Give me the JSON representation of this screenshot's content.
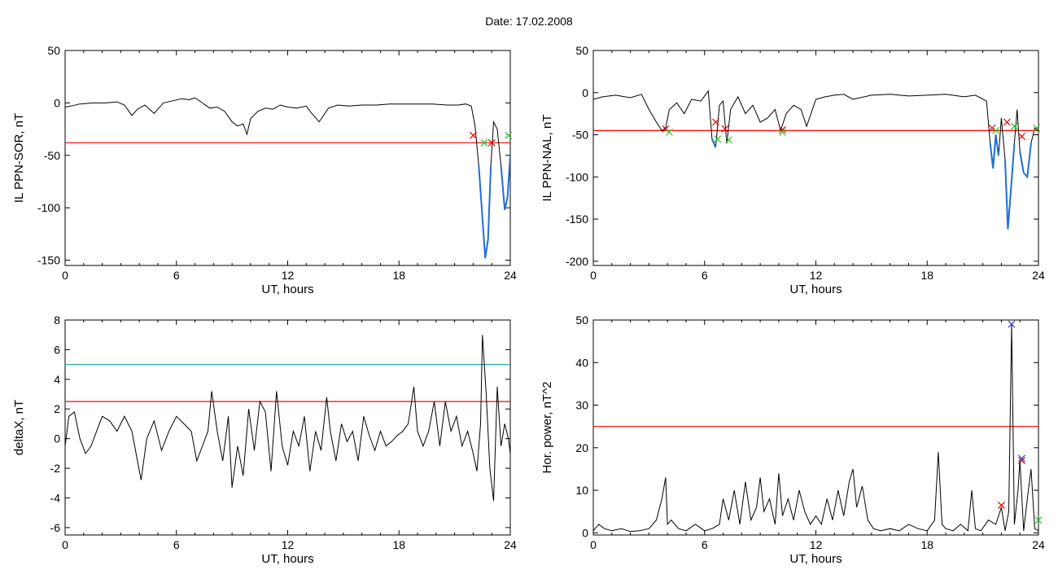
{
  "figure": {
    "title": "Date:  17.02.2008"
  },
  "chart_data": [
    {
      "type": "line",
      "xlabel": "UT, hours",
      "ylabel": "IL PPN-SOR, nT",
      "xlim": [
        0,
        24
      ],
      "ylim": [
        -155,
        50
      ],
      "xticks": [
        0,
        6,
        12,
        18,
        24
      ],
      "yticks": [
        -150,
        -100,
        -50,
        0,
        50
      ],
      "colors": {
        "trace": "#000000",
        "threshold": "#ff0000",
        "highlight": "#1f6fd6",
        "marker_red": "#dd0000",
        "marker_green": "#22cc22"
      },
      "series": [
        {
          "x": [
            0,
            0.3,
            0.8,
            1.5,
            2.2,
            2.8,
            3.2,
            3.6,
            3.9,
            4.3,
            4.8,
            5.3,
            5.8,
            6.3,
            6.7,
            7.0,
            7.4,
            7.8,
            8.2,
            8.6,
            9.0,
            9.3,
            9.6,
            9.8,
            10.0,
            10.4,
            10.8,
            11.2,
            11.6,
            12.0,
            12.5,
            13.0,
            13.3,
            13.7,
            14.2,
            14.7,
            15.3,
            16.0,
            16.8,
            17.5,
            18.2,
            19.0,
            19.8,
            20.6,
            21.2,
            21.6,
            21.9,
            22.1,
            22.3,
            22.5,
            22.65,
            22.8,
            22.95,
            23.1,
            23.3,
            23.5,
            23.7,
            23.85,
            24
          ],
          "values": [
            -4,
            -3,
            -1,
            0,
            0,
            1,
            -2,
            -12,
            -6,
            -2,
            -10,
            0,
            2,
            4,
            3,
            5,
            0,
            -5,
            -4,
            -8,
            -18,
            -22,
            -20,
            -30,
            -15,
            -8,
            -5,
            -6,
            -2,
            -4,
            -5,
            -3,
            -10,
            -18,
            -5,
            -2,
            -3,
            -2,
            -2,
            -1,
            -1,
            -1,
            -1,
            -2,
            -2,
            -1,
            -3,
            -22,
            -60,
            -110,
            -148,
            -130,
            -60,
            -18,
            -25,
            -60,
            -102,
            -90,
            -50
          ]
        }
      ],
      "threshold": -38,
      "events": [
        {
          "x": 22.0,
          "y": -31,
          "color": "red"
        },
        {
          "x": 23.0,
          "y": -38,
          "color": "red"
        },
        {
          "x": 22.6,
          "y": -38,
          "color": "green"
        },
        {
          "x": 23.9,
          "y": -31,
          "color": "green"
        }
      ]
    },
    {
      "type": "line",
      "xlabel": "UT, hours",
      "ylabel": "IL PPN-NAL, nT",
      "xlim": [
        0,
        24
      ],
      "ylim": [
        -205,
        50
      ],
      "xticks": [
        0,
        6,
        12,
        18,
        24
      ],
      "yticks": [
        -200,
        -150,
        -100,
        -50,
        0,
        50
      ],
      "colors": {
        "trace": "#000000",
        "threshold": "#ff0000",
        "highlight": "#1f6fd6",
        "marker_red": "#dd0000",
        "marker_green": "#22cc22"
      },
      "series": [
        {
          "x": [
            0,
            0.5,
            1.2,
            2.0,
            2.6,
            3.0,
            3.4,
            3.7,
            3.9,
            4.1,
            4.5,
            4.9,
            5.3,
            5.8,
            6.2,
            6.4,
            6.6,
            6.8,
            7.0,
            7.2,
            7.4,
            7.8,
            8.2,
            8.6,
            9.0,
            9.4,
            9.8,
            10.1,
            10.4,
            10.8,
            11.2,
            11.5,
            12.0,
            12.5,
            13.0,
            13.5,
            14.0,
            15.0,
            16.0,
            17.0,
            18.0,
            19.0,
            20.0,
            20.6,
            21.2,
            21.4,
            21.55,
            21.7,
            21.85,
            22.0,
            22.2,
            22.35,
            22.5,
            22.7,
            22.85,
            23.0,
            23.2,
            23.4,
            23.6,
            23.8,
            24
          ],
          "values": [
            -8,
            -5,
            -3,
            -6,
            -2,
            -20,
            -35,
            -45,
            -42,
            -20,
            -12,
            -25,
            -8,
            -10,
            2,
            -55,
            -65,
            -15,
            -10,
            -60,
            -20,
            -5,
            -25,
            -15,
            -35,
            -30,
            -20,
            -45,
            -25,
            -15,
            -20,
            -40,
            -8,
            -5,
            -3,
            -2,
            -8,
            -3,
            -2,
            -4,
            -3,
            -2,
            -5,
            -3,
            -10,
            -60,
            -90,
            -50,
            -75,
            -30,
            -80,
            -162,
            -120,
            -60,
            -20,
            -70,
            -95,
            -100,
            -60,
            -42,
            -45
          ]
        }
      ],
      "threshold": -45,
      "events": [
        {
          "x": 3.9,
          "y": -43,
          "color": "red"
        },
        {
          "x": 6.6,
          "y": -35,
          "color": "red"
        },
        {
          "x": 7.1,
          "y": -43,
          "color": "red"
        },
        {
          "x": 10.2,
          "y": -44,
          "color": "red"
        },
        {
          "x": 21.5,
          "y": -42,
          "color": "red"
        },
        {
          "x": 22.3,
          "y": -35,
          "color": "red"
        },
        {
          "x": 23.1,
          "y": -52,
          "color": "red"
        },
        {
          "x": 4.1,
          "y": -47,
          "color": "green"
        },
        {
          "x": 6.7,
          "y": -55,
          "color": "green"
        },
        {
          "x": 7.3,
          "y": -56,
          "color": "green"
        },
        {
          "x": 10.2,
          "y": -47,
          "color": "green"
        },
        {
          "x": 21.7,
          "y": -45,
          "color": "green"
        },
        {
          "x": 22.7,
          "y": -40,
          "color": "green"
        },
        {
          "x": 23.9,
          "y": -42,
          "color": "green"
        }
      ]
    },
    {
      "type": "line",
      "xlabel": "UT, hours",
      "ylabel": "deltaX, nT",
      "xlim": [
        0,
        24
      ],
      "ylim": [
        -6.5,
        8
      ],
      "xticks": [
        0,
        6,
        12,
        18,
        24
      ],
      "yticks": [
        -6,
        -4,
        -2,
        0,
        2,
        4,
        6,
        8
      ],
      "colors": {
        "trace": "#000000",
        "threshold": "#ff0000",
        "threshold2": "#2aa6a6"
      },
      "series": [
        {
          "x": [
            0,
            0.2,
            0.5,
            0.8,
            1.1,
            1.4,
            1.7,
            2.0,
            2.4,
            2.8,
            3.2,
            3.6,
            3.9,
            4.1,
            4.4,
            4.8,
            5.2,
            5.6,
            6.0,
            6.4,
            6.8,
            7.1,
            7.4,
            7.7,
            7.9,
            8.2,
            8.5,
            8.8,
            9.0,
            9.3,
            9.6,
            9.9,
            10.2,
            10.5,
            10.8,
            11.1,
            11.4,
            11.7,
            12.0,
            12.3,
            12.6,
            12.9,
            13.2,
            13.5,
            13.8,
            14.1,
            14.3,
            14.6,
            14.9,
            15.2,
            15.5,
            15.8,
            16.1,
            16.4,
            16.7,
            17.0,
            17.3,
            17.6,
            17.9,
            18.2,
            18.5,
            18.8,
            19.0,
            19.3,
            19.6,
            19.9,
            20.2,
            20.5,
            20.8,
            21.1,
            21.4,
            21.7,
            22.0,
            22.2,
            22.4,
            22.5,
            22.7,
            22.9,
            23.1,
            23.3,
            23.5,
            23.7,
            23.9,
            24
          ],
          "values": [
            -0.5,
            1.5,
            1.8,
            0,
            -1,
            -0.5,
            0.5,
            1.5,
            1.2,
            0.5,
            1.5,
            0.5,
            -1.5,
            -2.8,
            0,
            1.2,
            -0.8,
            0.5,
            1.5,
            1,
            0.5,
            -1.5,
            -0.5,
            0.5,
            3.2,
            0.5,
            -1.5,
            1.5,
            -3.3,
            -0.5,
            -2.5,
            2,
            -0.8,
            2.5,
            1.8,
            -2.2,
            3.2,
            -0.5,
            -1.8,
            0.5,
            -0.5,
            1.5,
            -2.2,
            0.5,
            -0.8,
            2.8,
            0.5,
            -1.5,
            1,
            -0.2,
            0.5,
            -1.5,
            1.5,
            0.2,
            -0.8,
            0.5,
            -0.5,
            -0.2,
            0.2,
            0.5,
            1,
            3.5,
            0.5,
            -0.5,
            0.5,
            2.5,
            -0.5,
            2.5,
            0.5,
            1.5,
            -0.5,
            0.5,
            -1,
            -2.2,
            1,
            7,
            3,
            -2,
            -4.2,
            3.5,
            -0.5,
            1,
            0,
            -1
          ]
        }
      ],
      "threshold": 2.5,
      "threshold2": 5
    },
    {
      "type": "line",
      "xlabel": "UT, hours",
      "ylabel": "Hor. power, nT^2",
      "xlim": [
        0,
        24
      ],
      "ylim": [
        -0.5,
        50
      ],
      "xticks": [
        0,
        6,
        12,
        18,
        24
      ],
      "yticks": [
        0,
        10,
        20,
        30,
        40,
        50
      ],
      "colors": {
        "trace": "#000000",
        "threshold": "#ff0000",
        "marker_red": "#dd0000",
        "marker_blue": "#2244dd",
        "marker_green": "#22cc22"
      },
      "series": [
        {
          "x": [
            0,
            0.3,
            0.6,
            1.0,
            1.5,
            2.0,
            2.5,
            3.0,
            3.4,
            3.7,
            3.9,
            4.0,
            4.2,
            4.6,
            5.0,
            5.5,
            6.0,
            6.4,
            6.8,
            7.0,
            7.3,
            7.6,
            7.9,
            8.2,
            8.5,
            8.8,
            9.0,
            9.2,
            9.5,
            9.8,
            10.0,
            10.2,
            10.5,
            10.8,
            11.1,
            11.4,
            11.7,
            12.0,
            12.3,
            12.6,
            12.9,
            13.2,
            13.5,
            13.8,
            14.0,
            14.2,
            14.5,
            14.8,
            15.1,
            15.5,
            16.0,
            16.5,
            17.0,
            17.5,
            18.0,
            18.4,
            18.6,
            18.8,
            19.0,
            19.4,
            19.8,
            20.2,
            20.4,
            20.6,
            20.9,
            21.3,
            21.7,
            22.0,
            22.2,
            22.4,
            22.55,
            22.7,
            22.9,
            23.0,
            23.2,
            23.4,
            23.6,
            23.8,
            24
          ],
          "values": [
            0.5,
            2,
            1,
            0.5,
            1,
            0.3,
            0.5,
            1,
            3,
            8,
            13,
            2,
            3,
            1,
            0.5,
            2,
            0.5,
            1,
            2,
            8,
            3,
            10,
            2,
            12,
            3,
            6,
            13,
            5,
            8,
            2,
            14,
            4,
            8,
            3,
            10,
            5,
            2,
            4,
            2,
            8,
            3,
            10,
            4,
            12,
            15,
            6,
            11,
            3,
            1,
            0.5,
            1,
            0.5,
            2,
            1,
            0.5,
            3,
            19,
            2,
            1,
            0.5,
            2,
            0.5,
            10,
            1,
            0.5,
            3,
            2,
            6,
            0.5,
            5,
            49,
            2,
            10,
            17,
            0.5,
            8,
            15,
            1,
            0.5
          ]
        }
      ],
      "threshold": 25,
      "events": [
        {
          "x": 22.0,
          "y": 6.5,
          "color": "red"
        },
        {
          "x": 22.55,
          "y": 49,
          "color": "blue"
        },
        {
          "x": 23.1,
          "y": 17,
          "color": "red"
        },
        {
          "x": 23.1,
          "y": 17.5,
          "color": "blue"
        },
        {
          "x": 24.0,
          "y": 3,
          "color": "green"
        }
      ]
    }
  ]
}
